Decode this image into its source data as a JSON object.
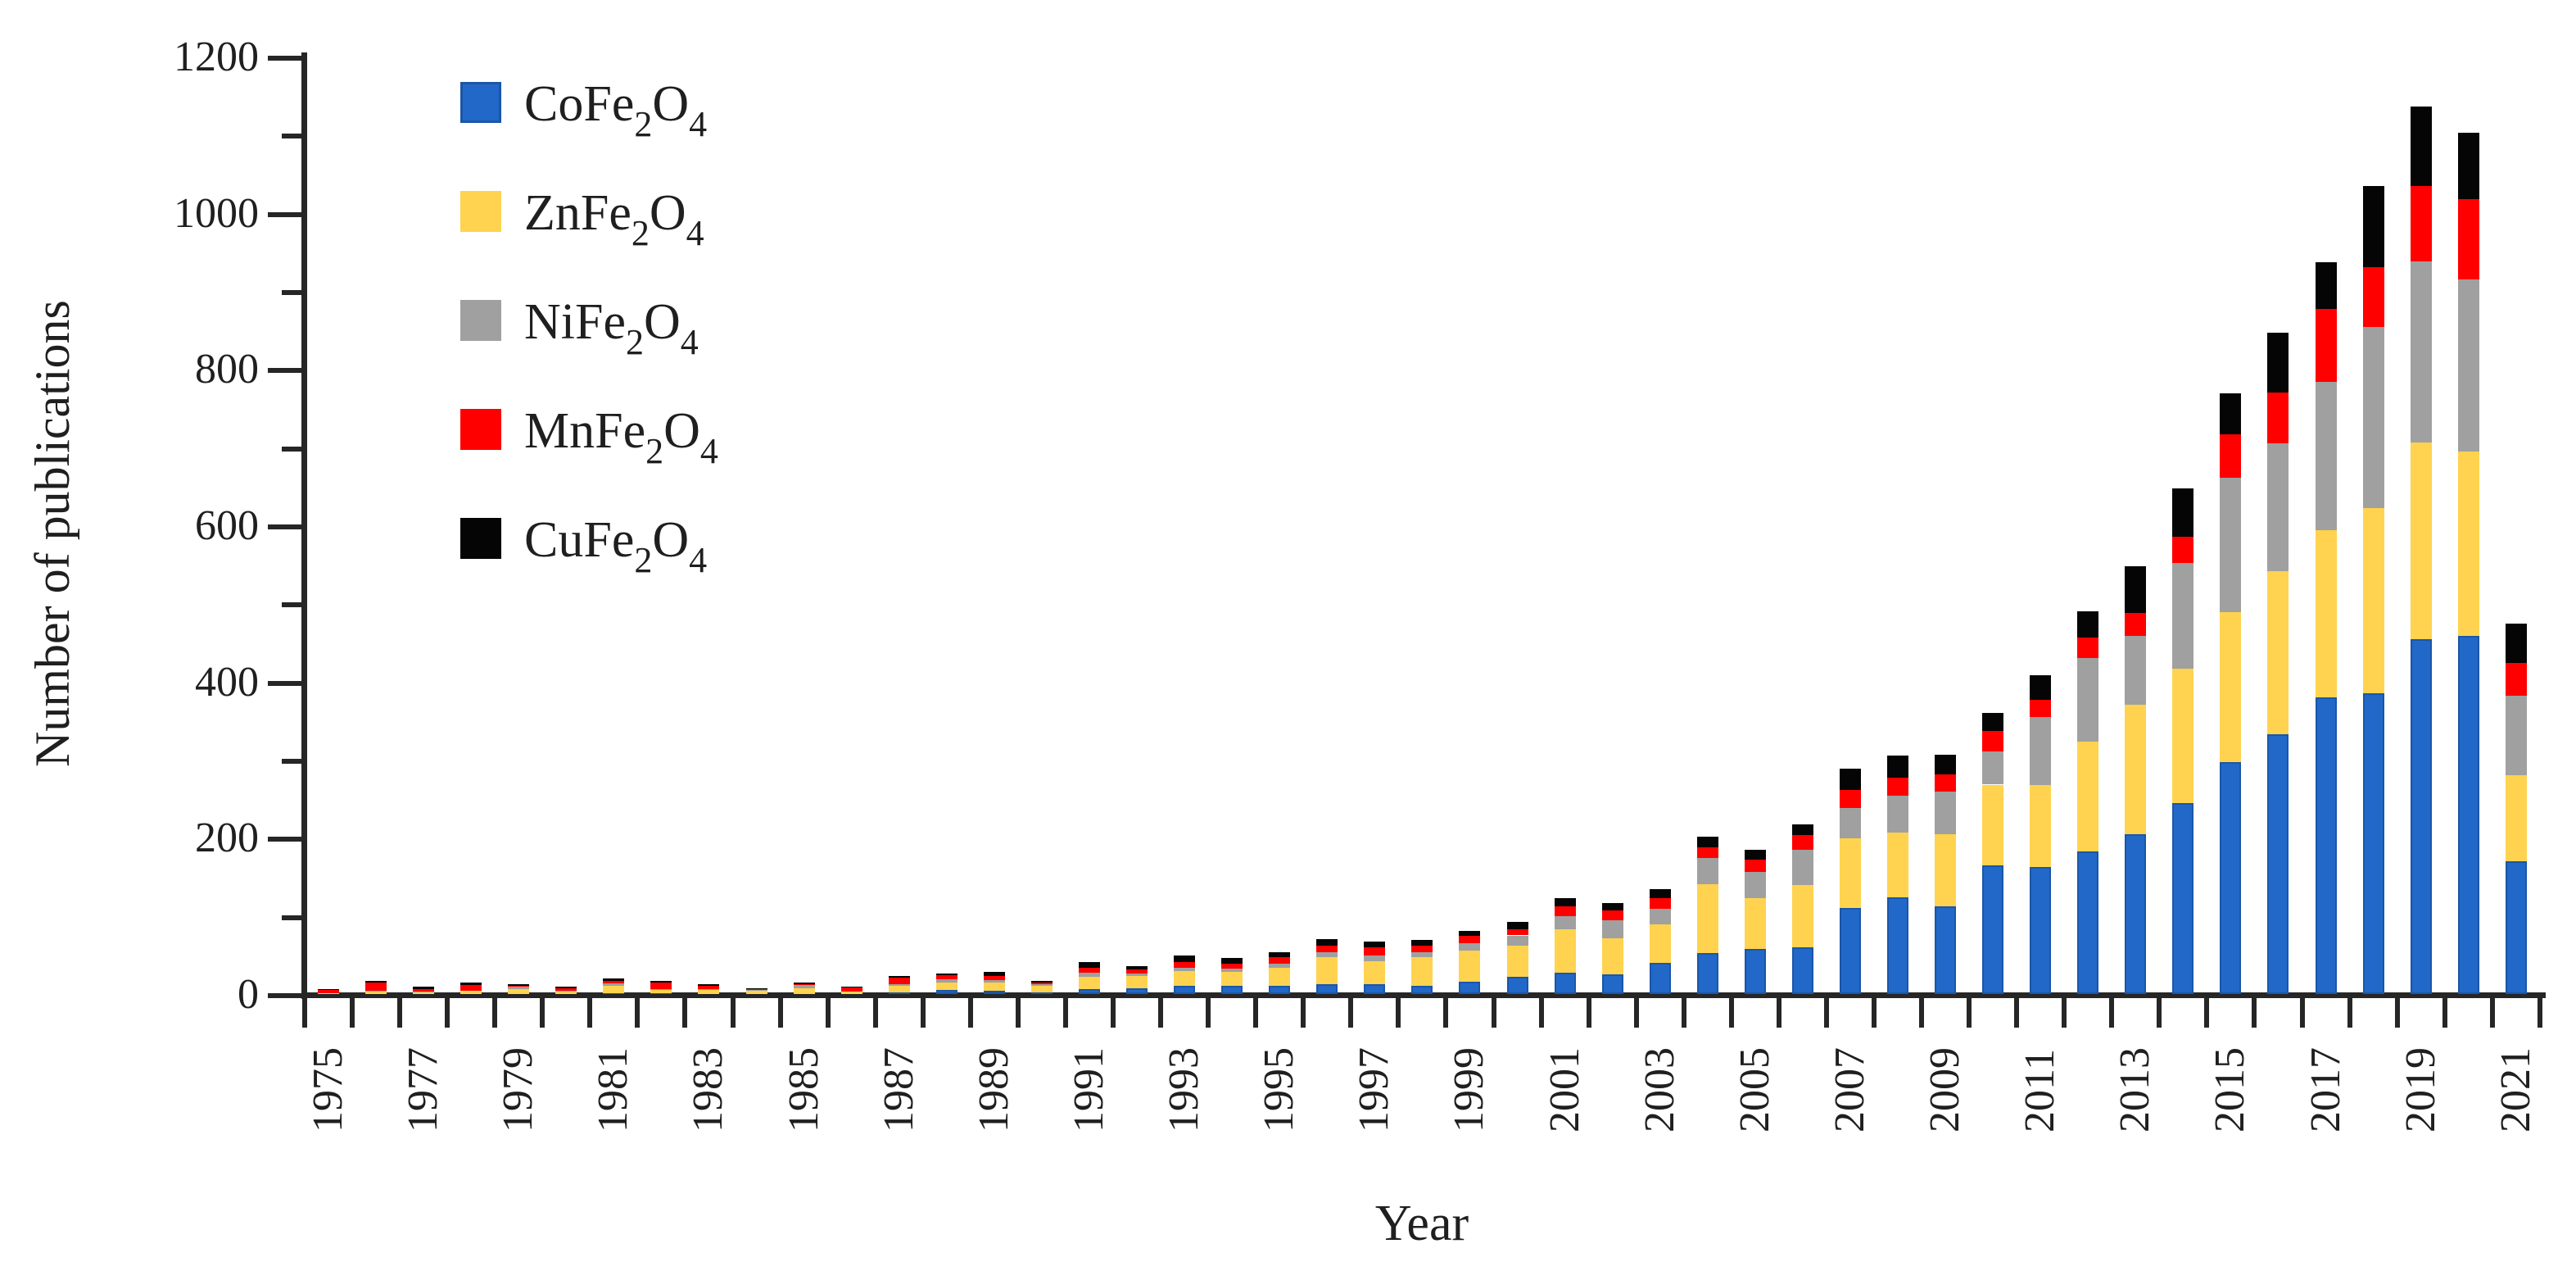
{
  "chart_data": {
    "type": "bar",
    "stacked": true,
    "title": "",
    "xlabel": "Year",
    "ylabel": "Number of publications",
    "ylim": [
      0,
      1200
    ],
    "ytick_step": 200,
    "yminor_step": 100,
    "x_label_every": 2,
    "grid": false,
    "legend_position": "upper-left-inside",
    "background": "#FFFFFF",
    "axis_color": "#262626",
    "categories": [
      1975,
      1976,
      1977,
      1978,
      1979,
      1980,
      1981,
      1982,
      1983,
      1984,
      1985,
      1986,
      1987,
      1988,
      1989,
      1990,
      1991,
      1992,
      1993,
      1994,
      1995,
      1996,
      1997,
      1998,
      1999,
      2000,
      2001,
      2002,
      2003,
      2004,
      2005,
      2006,
      2007,
      2008,
      2009,
      2010,
      2011,
      2012,
      2013,
      2014,
      2015,
      2016,
      2017,
      2018,
      2019,
      2020,
      2021
    ],
    "series": [
      {
        "name": "CoFe2O4",
        "label_parts": {
          "prefix": "CoFe",
          "sub_a": "2",
          "mid": "O",
          "sub_b": "4"
        },
        "color": "#2268C8",
        "border": "#1A56A8",
        "values": [
          0,
          0,
          0,
          0,
          0,
          0,
          1,
          1,
          0,
          0,
          0,
          0,
          2,
          5,
          4,
          2,
          6,
          7,
          11,
          10,
          11,
          13,
          13,
          11,
          16,
          22,
          27,
          25,
          40,
          52,
          58,
          60,
          110,
          124,
          112,
          165,
          163,
          182,
          205,
          244,
          297,
          333,
          380,
          385,
          454,
          458,
          170
        ]
      },
      {
        "name": "ZnFe2O4",
        "label_parts": {
          "prefix": "ZnFe",
          "sub_a": "2",
          "mid": "O",
          "sub_b": "4"
        },
        "color": "#FFD34F",
        "border": "",
        "values": [
          1,
          3,
          2,
          4,
          6,
          3,
          9,
          4,
          5,
          4,
          7,
          3,
          9,
          10,
          11,
          9,
          16,
          16,
          18,
          18,
          23,
          34,
          29,
          36,
          40,
          40,
          56,
          46,
          49,
          89,
          65,
          79,
          89,
          83,
          93,
          103,
          104,
          141,
          165,
          172,
          192,
          208,
          214,
          237,
          252,
          236,
          110
        ]
      },
      {
        "name": "NiFe2O4",
        "label_parts": {
          "prefix": "NiFe",
          "sub_a": "2",
          "mid": "O",
          "sub_b": "4"
        },
        "color": "#A0A0A0",
        "border": "",
        "values": [
          0,
          1,
          1,
          0,
          4,
          1,
          4,
          1,
          1,
          1,
          5,
          0,
          2,
          4,
          3,
          2,
          5,
          3,
          5,
          5,
          5,
          7,
          7,
          7,
          9,
          13,
          17,
          23,
          20,
          33,
          33,
          46,
          39,
          47,
          54,
          42,
          88,
          107,
          88,
          136,
          172,
          164,
          190,
          232,
          232,
          221,
          102
        ]
      },
      {
        "name": "MnFe2O4",
        "label_parts": {
          "prefix": "MnFe",
          "sub_a": "2",
          "mid": "O",
          "sub_b": "4"
        },
        "color": "#FE0000",
        "border": "",
        "values": [
          4,
          11,
          3,
          8,
          1,
          3,
          3,
          9,
          5,
          1,
          1,
          5,
          8,
          5,
          5,
          2,
          7,
          5,
          7,
          6,
          8,
          8,
          11,
          8,
          9,
          8,
          12,
          13,
          14,
          14,
          16,
          18,
          23,
          23,
          22,
          27,
          22,
          26,
          30,
          33,
          55,
          65,
          93,
          76,
          96,
          103,
          42
        ]
      },
      {
        "name": "CuFe2O4",
        "label_parts": {
          "prefix": "CuFe",
          "sub_a": "2",
          "mid": "O",
          "sub_b": "4"
        },
        "color": "#050505",
        "border": "",
        "values": [
          1,
          2,
          3,
          3,
          2,
          2,
          3,
          2,
          2,
          1,
          2,
          1,
          2,
          2,
          5,
          2,
          7,
          5,
          8,
          7,
          7,
          8,
          7,
          7,
          7,
          9,
          11,
          9,
          11,
          13,
          13,
          14,
          27,
          28,
          25,
          23,
          31,
          34,
          60,
          62,
          53,
          77,
          60,
          104,
          102,
          84,
          50
        ]
      }
    ]
  }
}
